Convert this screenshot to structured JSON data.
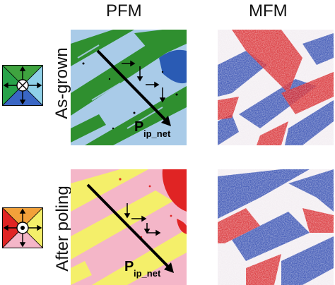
{
  "figure": {
    "headers": {
      "pfm": "PFM",
      "mfm": "MFM"
    },
    "rows": [
      {
        "label": "As-grown",
        "arrow_label": "P",
        "arrow_sub": "ip_net"
      },
      {
        "label": "After poling",
        "arrow_label": "P",
        "arrow_sub": "ip_net"
      }
    ],
    "colors": {
      "asgrown_bg": "#a9cbe8",
      "asgrown_stripe": "#2f8f2f",
      "asgrown_blue": "#2a5bb4",
      "poled_bg": "#f4b6c8",
      "poled_stripe": "#f4ef6a",
      "poled_red": "#e02424",
      "mfm_red": "#d8262a",
      "mfm_blue": "#2c48b0"
    },
    "legend_icons": [
      "domain-legend-green-blue-icon",
      "domain-legend-orange-pink-icon"
    ]
  }
}
